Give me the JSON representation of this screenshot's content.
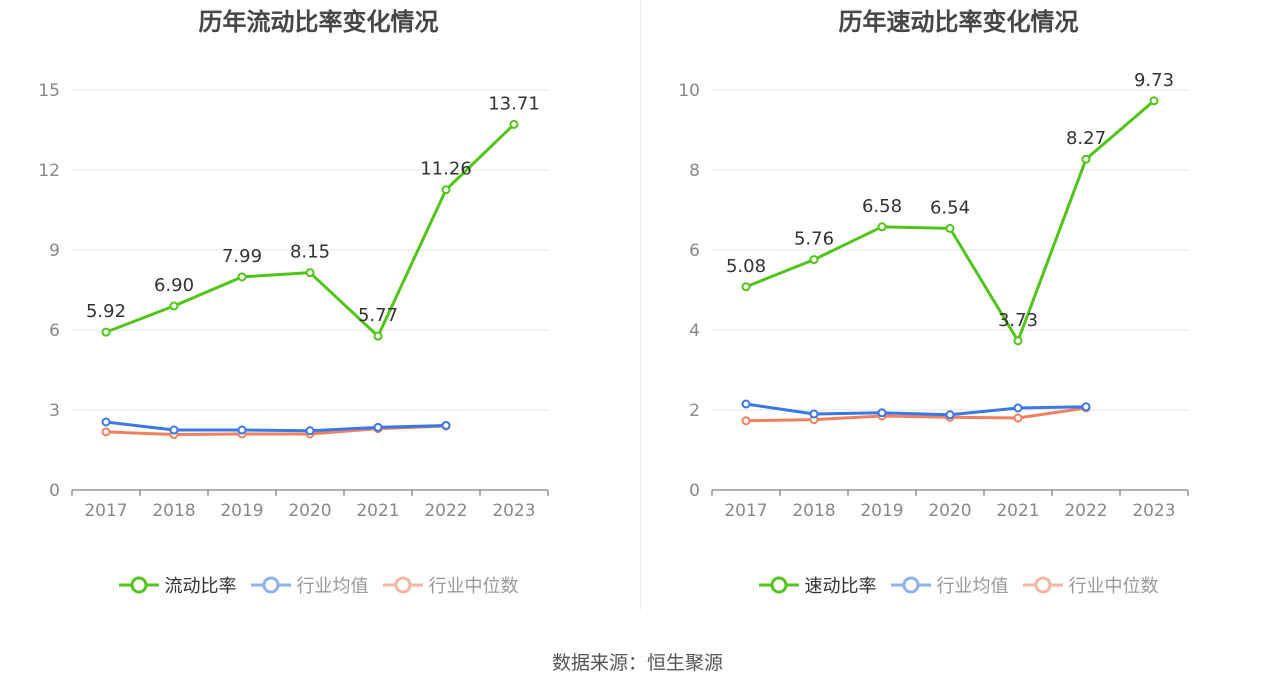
{
  "source": "数据来源：恒生聚源",
  "legend_labels": [
    "行业均值",
    "行业中位数"
  ],
  "chart_data": [
    {
      "type": "line",
      "title": "历年流动比率变化情况",
      "categories": [
        "2017",
        "2018",
        "2019",
        "2020",
        "2021",
        "2022",
        "2023"
      ],
      "ylim": [
        0,
        15
      ],
      "yticks": [
        0,
        3,
        6,
        9,
        12,
        15
      ],
      "grid": true,
      "legend_position": "bottom",
      "series": [
        {
          "name": "流动比率",
          "color": "#52c41a",
          "values": [
            5.92,
            6.9,
            7.99,
            8.15,
            5.77,
            11.26,
            13.71
          ],
          "labels": [
            "5.92",
            "6.90",
            "7.99",
            "8.15",
            "5.77",
            "11.26",
            "13.71"
          ]
        },
        {
          "name": "行业均值",
          "color": "#3b78e7",
          "values": [
            2.55,
            2.25,
            2.25,
            2.22,
            2.35,
            2.42,
            null
          ]
        },
        {
          "name": "行业中位数",
          "color": "#f08060",
          "values": [
            2.18,
            2.08,
            2.1,
            2.1,
            2.3,
            2.4,
            null
          ]
        }
      ]
    },
    {
      "type": "line",
      "title": "历年速动比率变化情况",
      "categories": [
        "2017",
        "2018",
        "2019",
        "2020",
        "2021",
        "2022",
        "2023"
      ],
      "ylim": [
        0,
        10
      ],
      "yticks": [
        0,
        2,
        4,
        6,
        8,
        10
      ],
      "grid": true,
      "legend_position": "bottom",
      "series": [
        {
          "name": "速动比率",
          "color": "#52c41a",
          "values": [
            5.08,
            5.76,
            6.58,
            6.54,
            3.73,
            8.27,
            9.73
          ],
          "labels": [
            "5.08",
            "5.76",
            "6.58",
            "6.54",
            "3.73",
            "8.27",
            "9.73"
          ]
        },
        {
          "name": "行业均值",
          "color": "#3b78e7",
          "values": [
            2.15,
            1.9,
            1.93,
            1.88,
            2.05,
            2.08,
            null
          ]
        },
        {
          "name": "行业中位数",
          "color": "#f08060",
          "values": [
            1.73,
            1.76,
            1.85,
            1.82,
            1.8,
            2.05,
            null
          ]
        }
      ]
    }
  ]
}
